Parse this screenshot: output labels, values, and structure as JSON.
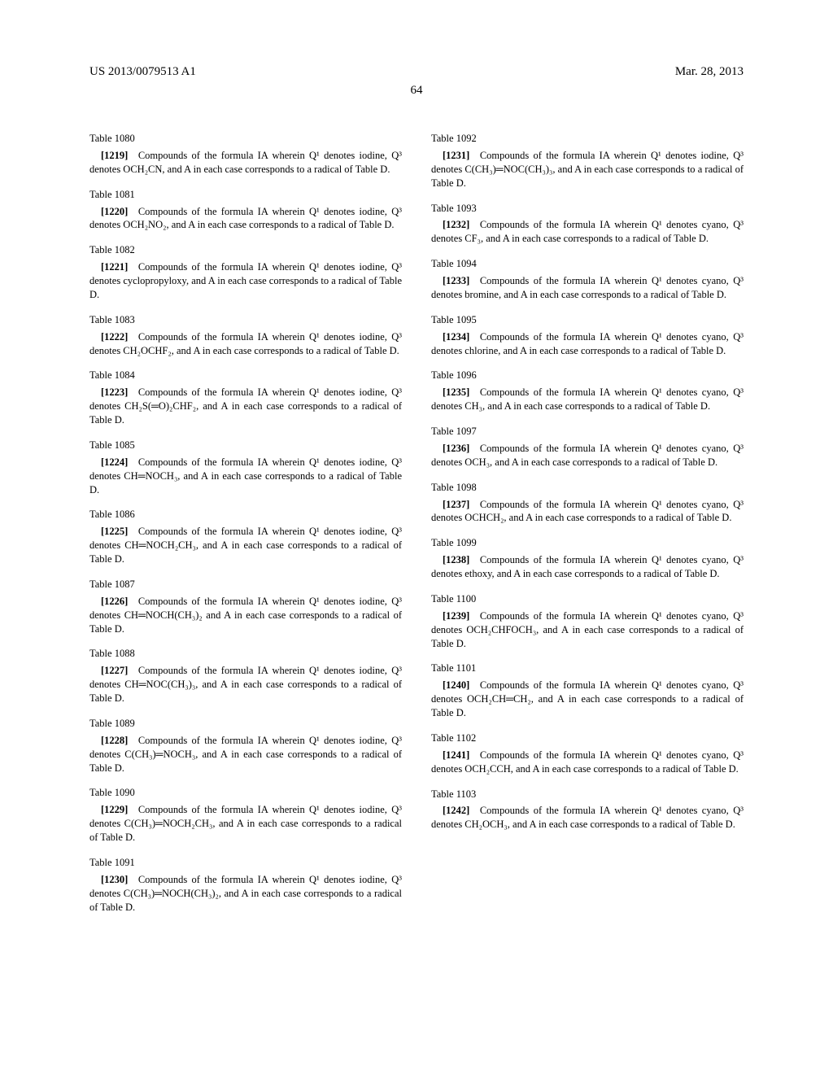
{
  "header": {
    "pub_number": "US 2013/0079513 A1",
    "pub_date": "Mar. 28, 2013"
  },
  "page_number": "64",
  "left": [
    {
      "tbl": "Table 1080",
      "num": "[1219]",
      "txt": "Compounds of the formula IA wherein Q¹ denotes iodine, Q³ denotes OCH₂CN, and A in each case corresponds to a radical of Table D."
    },
    {
      "tbl": "Table 1081",
      "num": "[1220]",
      "txt": "Compounds of the formula IA wherein Q¹ denotes iodine, Q³ denotes OCH₂NO₂, and A in each case corresponds to a radical of Table D."
    },
    {
      "tbl": "Table 1082",
      "num": "[1221]",
      "txt": "Compounds of the formula IA wherein Q¹ denotes iodine, Q³ denotes cyclopropyloxy, and A in each case corresponds to a radical of Table D."
    },
    {
      "tbl": "Table 1083",
      "num": "[1222]",
      "txt": "Compounds of the formula IA wherein Q¹ denotes iodine, Q³ denotes CH₂OCHF₂, and A in each case corresponds to a radical of Table D."
    },
    {
      "tbl": "Table 1084",
      "num": "[1223]",
      "txt": "Compounds of the formula IA wherein Q¹ denotes iodine, Q³ denotes CH₂S(═O)₂CHF₂, and A in each case corresponds to a radical of Table D."
    },
    {
      "tbl": "Table 1085",
      "num": "[1224]",
      "txt": "Compounds of the formula IA wherein Q¹ denotes iodine, Q³ denotes CH═NOCH₃, and A in each case corresponds to a radical of Table D."
    },
    {
      "tbl": "Table 1086",
      "num": "[1225]",
      "txt": "Compounds of the formula IA wherein Q¹ denotes iodine, Q³ denotes CH═NOCH₂CH₃, and A in each case corresponds to a radical of Table D."
    },
    {
      "tbl": "Table 1087",
      "num": "[1226]",
      "txt": "Compounds of the formula IA wherein Q¹ denotes iodine, Q³ denotes CH═NOCH(CH₃)₂ and A in each case corresponds to a radical of Table D."
    },
    {
      "tbl": "Table 1088",
      "num": "[1227]",
      "txt": "Compounds of the formula IA wherein Q¹ denotes iodine, Q³ denotes CH═NOC(CH₃)₃, and A in each case corresponds to a radical of Table D."
    },
    {
      "tbl": "Table 1089",
      "num": "[1228]",
      "txt": "Compounds of the formula IA wherein Q¹ denotes iodine, Q³ denotes C(CH₃)═NOCH₃, and A in each case corresponds to a radical of Table D."
    },
    {
      "tbl": "Table 1090",
      "num": "[1229]",
      "txt": "Compounds of the formula IA wherein Q¹ denotes iodine, Q³ denotes C(CH₃)═NOCH₂CH₃, and A in each case corresponds to a radical of Table D."
    },
    {
      "tbl": "Table 1091",
      "num": "[1230]",
      "txt": "Compounds of the formula IA wherein Q¹ denotes iodine, Q³ denotes C(CH₃)═NOCH(CH₃)₂, and A in each case corresponds to a radical of Table D."
    }
  ],
  "right": [
    {
      "tbl": "Table 1092",
      "num": "[1231]",
      "txt": "Compounds of the formula IA wherein Q¹ denotes iodine, Q³ denotes C(CH₃)═NOC(CH₃)₃, and A in each case corresponds to a radical of Table D."
    },
    {
      "tbl": "Table 1093",
      "num": "[1232]",
      "txt": "Compounds of the formula IA wherein Q¹ denotes cyano, Q³ denotes CF₃, and A in each case corresponds to a radical of Table D."
    },
    {
      "tbl": "Table 1094",
      "num": "[1233]",
      "txt": "Compounds of the formula IA wherein Q¹ denotes cyano, Q³ denotes bromine, and A in each case corresponds to a radical of Table D."
    },
    {
      "tbl": "Table 1095",
      "num": "[1234]",
      "txt": "Compounds of the formula IA wherein Q¹ denotes cyano, Q³ denotes chlorine, and A in each case corresponds to a radical of Table D."
    },
    {
      "tbl": "Table 1096",
      "num": "[1235]",
      "txt": "Compounds of the formula IA wherein Q¹ denotes cyano, Q³ denotes CH₃, and A in each case corresponds to a radical of Table D."
    },
    {
      "tbl": "Table 1097",
      "num": "[1236]",
      "txt": "Compounds of the formula IA wherein Q¹ denotes cyano, Q³ denotes OCH₃, and A in each case corresponds to a radical of Table D."
    },
    {
      "tbl": "Table 1098",
      "num": "[1237]",
      "txt": "Compounds of the formula IA wherein Q¹ denotes cyano, Q³ denotes OCHCH₂, and A in each case corresponds to a radical of Table D."
    },
    {
      "tbl": "Table 1099",
      "num": "[1238]",
      "txt": "Compounds of the formula IA wherein Q¹ denotes cyano, Q³ denotes ethoxy, and A in each case corresponds to a radical of Table D."
    },
    {
      "tbl": "Table 1100",
      "num": "[1239]",
      "txt": "Compounds of the formula IA wherein Q¹ denotes cyano, Q³ denotes OCH₂CHFOCH₃, and A in each case corresponds to a radical of Table D."
    },
    {
      "tbl": "Table 1101",
      "num": "[1240]",
      "txt": "Compounds of the formula IA wherein Q¹ denotes cyano, Q³ denotes OCH₂CH═CH₂, and A in each case corresponds to a radical of Table D."
    },
    {
      "tbl": "Table 1102",
      "num": "[1241]",
      "txt": "Compounds of the formula IA wherein Q¹ denotes cyano, Q³ denotes OCH₂CCH, and A in each case corresponds to a radical of Table D."
    },
    {
      "tbl": "Table 1103",
      "num": "[1242]",
      "txt": "Compounds of the formula IA wherein Q¹ denotes cyano, Q³ denotes CH₂OCH₃, and A in each case corresponds to a radical of Table D."
    }
  ]
}
